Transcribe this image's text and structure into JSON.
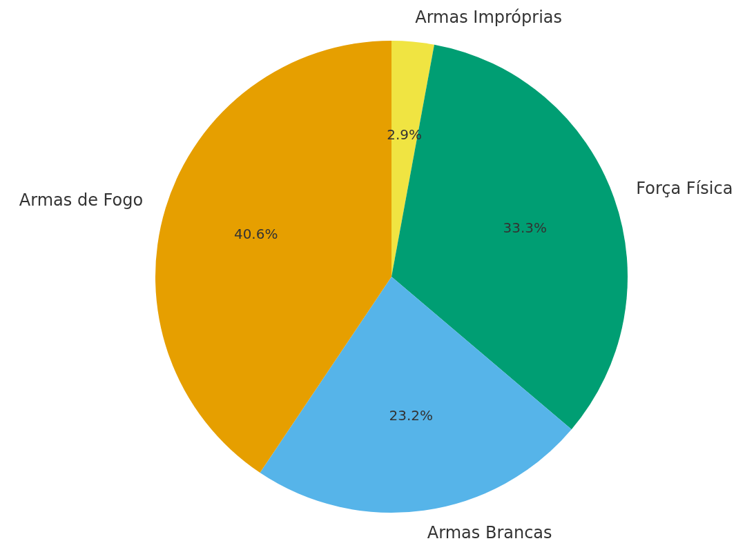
{
  "chart_data": {
    "type": "pie",
    "categories": [
      "Armas Impróprias",
      "Força Física",
      "Armas Brancas",
      "Armas de Fogo"
    ],
    "values": [
      2.9,
      33.3,
      23.2,
      40.6
    ],
    "value_labels": [
      "2.9%",
      "33.3%",
      "23.2%",
      "40.6%"
    ],
    "colors": [
      "#f0e442",
      "#009e73",
      "#56b4e9",
      "#e69f00"
    ],
    "legend": false
  }
}
